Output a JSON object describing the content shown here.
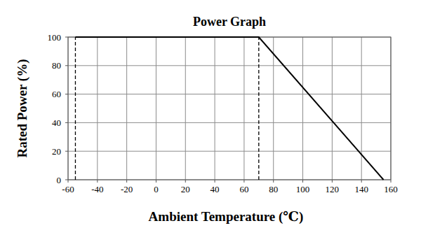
{
  "chart_data": {
    "type": "line",
    "title": "Power Graph",
    "x_label": "Ambient Temperature (℃)",
    "y_label": "Rated Power (%)",
    "series": [
      {
        "color": "#000000",
        "line_style": "solid",
        "x": [
          -55,
          70,
          155
        ],
        "values": [
          100,
          100,
          0
        ]
      },
      {
        "color": "#000000",
        "line_style": "dashed",
        "x": [
          -55,
          -55
        ],
        "values": [
          0,
          100
        ]
      },
      {
        "color": "#000000",
        "line_style": "dashed",
        "x": [
          70,
          70
        ],
        "values": [
          0,
          100
        ]
      }
    ],
    "xlim": [
      -60,
      160
    ],
    "xticks": [
      -60,
      -40,
      -20,
      0,
      20,
      40,
      60,
      80,
      100,
      120,
      140,
      160
    ],
    "ylim": [
      0,
      100
    ],
    "yticks": [
      0,
      20,
      40,
      60,
      80,
      100
    ],
    "grid": true
  }
}
